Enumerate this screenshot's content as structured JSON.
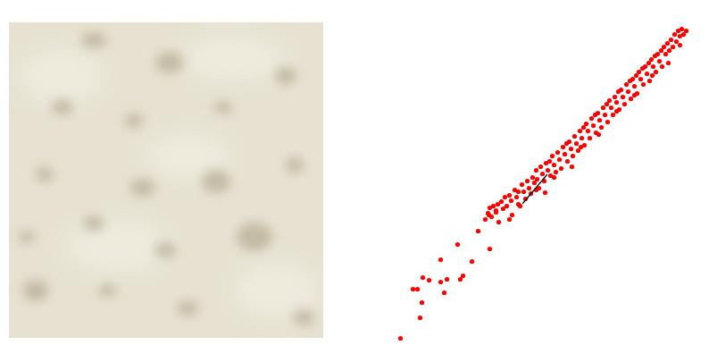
{
  "chart_data": {
    "type": "scatter",
    "xlim": [
      0,
      360
    ],
    "ylim": [
      0,
      390
    ],
    "tick_labels": false,
    "grid": false,
    "series": [
      {
        "type": "scatter",
        "color": "#ff0000",
        "marker": "circle",
        "x": [
          18,
          40,
          42,
          32,
          37,
          50,
          43,
          63,
          67,
          70,
          63,
          82,
          85,
          88,
          98,
          118,
          105,
          117,
          125,
          113,
          116,
          118,
          120,
          122,
          125,
          127,
          128,
          131,
          133,
          135,
          137,
          140,
          142,
          143,
          146,
          148,
          150,
          152,
          154,
          156,
          158,
          160,
          162,
          164,
          166,
          168,
          170,
          171,
          173,
          175,
          177,
          179,
          181,
          183,
          185,
          186,
          188,
          190,
          192,
          194,
          196,
          198,
          200,
          202,
          204,
          205,
          207,
          209,
          211,
          213,
          215,
          217,
          219,
          221,
          223,
          224,
          226,
          228,
          230,
          232,
          234,
          236,
          237,
          239,
          241,
          243,
          245,
          247,
          249,
          250,
          252,
          254,
          256,
          258,
          260,
          262,
          263,
          265,
          267,
          269,
          271,
          273,
          275,
          276,
          278,
          280,
          282,
          283,
          285,
          287,
          289,
          290,
          292,
          294,
          296,
          297,
          299,
          301,
          303,
          304,
          306,
          308,
          310,
          311,
          313,
          315,
          317,
          319,
          321,
          323,
          325,
          327,
          329,
          331,
          333,
          335,
          338,
          331,
          318,
          300,
          280,
          260,
          240,
          220,
          210,
          190,
          170,
          150,
          140,
          180
        ],
        "y": [
          12,
          35,
          52,
          67,
          67,
          77,
          80,
          75,
          63,
          78,
          100,
          117,
          78,
          82,
          98,
          112,
          132,
          150,
          155,
          145,
          152,
          158,
          148,
          160,
          153,
          162,
          142,
          165,
          157,
          170,
          160,
          172,
          166,
          150,
          178,
          170,
          176,
          160,
          184,
          176,
          168,
          188,
          180,
          174,
          192,
          186,
          200,
          190,
          180,
          204,
          196,
          188,
          208,
          200,
          210,
          194,
          216,
          206,
          198,
          220,
          212,
          202,
          226,
          218,
          230,
          210,
          232,
          224,
          216,
          238,
          230,
          222,
          244,
          236,
          248,
          228,
          252,
          244,
          236,
          258,
          250,
          262,
          242,
          264,
          256,
          248,
          270,
          262,
          274,
          254,
          278,
          270,
          262,
          282,
          276,
          288,
          268,
          290,
          282,
          274,
          296,
          288,
          300,
          280,
          302,
          294,
          306,
          286,
          310,
          302,
          314,
          296,
          316,
          308,
          320,
          300,
          324,
          316,
          328,
          310,
          330,
          322,
          334,
          316,
          338,
          330,
          342,
          334,
          346,
          338,
          352,
          344,
          356,
          350,
          358,
          352,
          356,
          340,
          320,
          306,
          284,
          266,
          240,
          226,
          204,
          192,
          178,
          162,
          145,
          175
        ]
      },
      {
        "type": "line",
        "color": "#000000",
        "line_style": "solid",
        "x": [
          155,
          182
        ],
        "y": [
          163,
          195
        ]
      }
    ]
  }
}
